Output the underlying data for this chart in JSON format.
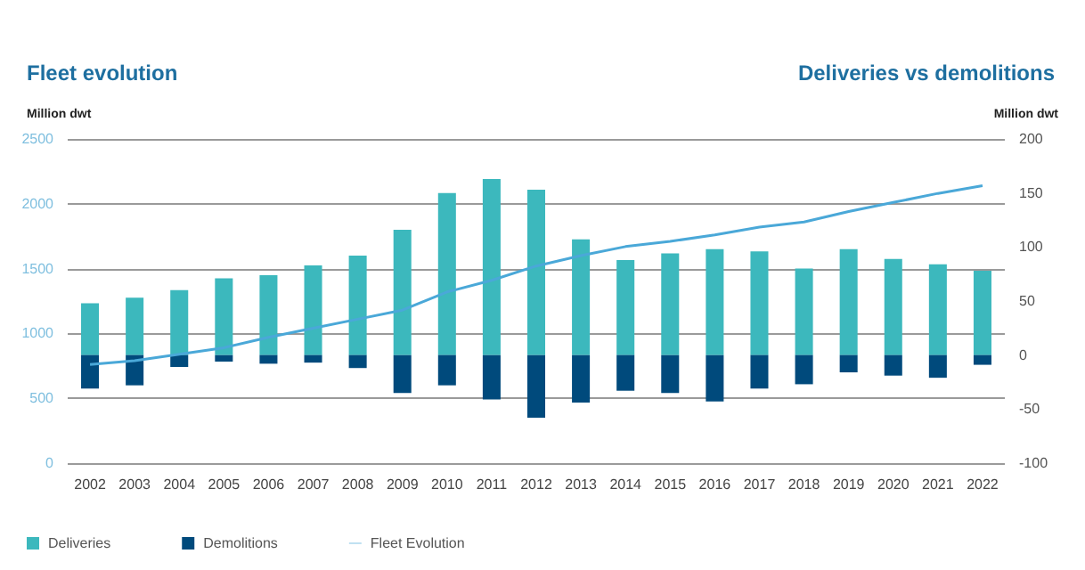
{
  "chart_data": {
    "type": "bar",
    "title": "Fleet evolution",
    "subtitle": "Deliveries vs demolitions",
    "ylabel": "Million dwt",
    "y2label": "Million dwt",
    "categories": [
      "2002",
      "2003",
      "2004",
      "2005",
      "2006",
      "2007",
      "2008",
      "2009",
      "2010",
      "2011",
      "2012",
      "2013",
      "2014",
      "2015",
      "2016",
      "2017",
      "2018",
      "2019",
      "2020",
      "2021",
      "2022"
    ],
    "stacked": true,
    "series": [
      {
        "name": "Deliveries",
        "axis": "y2",
        "color": "#3cb8bd",
        "values": [
          48,
          53,
          60,
          71,
          74,
          83,
          92,
          116,
          150,
          163,
          153,
          107,
          88,
          94,
          98,
          96,
          80,
          98,
          89,
          84,
          78
        ]
      },
      {
        "name": "Demolitions",
        "axis": "y2",
        "color": "#004a7c",
        "values": [
          -31,
          -28,
          -11,
          -6,
          -8,
          -7,
          -12,
          -35,
          -28,
          -41,
          -58,
          -44,
          -33,
          -35,
          -43,
          -31,
          -27,
          -16,
          -19,
          -21,
          -9
        ]
      },
      {
        "name": "Fleet Evolution",
        "type": "line",
        "color": "#4aa8d8",
        "values": [
          760,
          790,
          840,
          890,
          970,
          1040,
          1110,
          1180,
          1320,
          1410,
          1520,
          1600,
          1670,
          1710,
          1760,
          1820,
          1860,
          1940,
          2010,
          2080,
          2140
        ]
      }
    ],
    "ylim": [
      0,
      2500
    ],
    "yticks": [
      0,
      500,
      1000,
      1500,
      2000,
      2500
    ],
    "y2lim": [
      -100,
      200
    ],
    "y2ticks": [
      -100,
      -50,
      0,
      50,
      100,
      150,
      200
    ],
    "grid": "y",
    "legend": "bottom left",
    "marker": "none"
  }
}
